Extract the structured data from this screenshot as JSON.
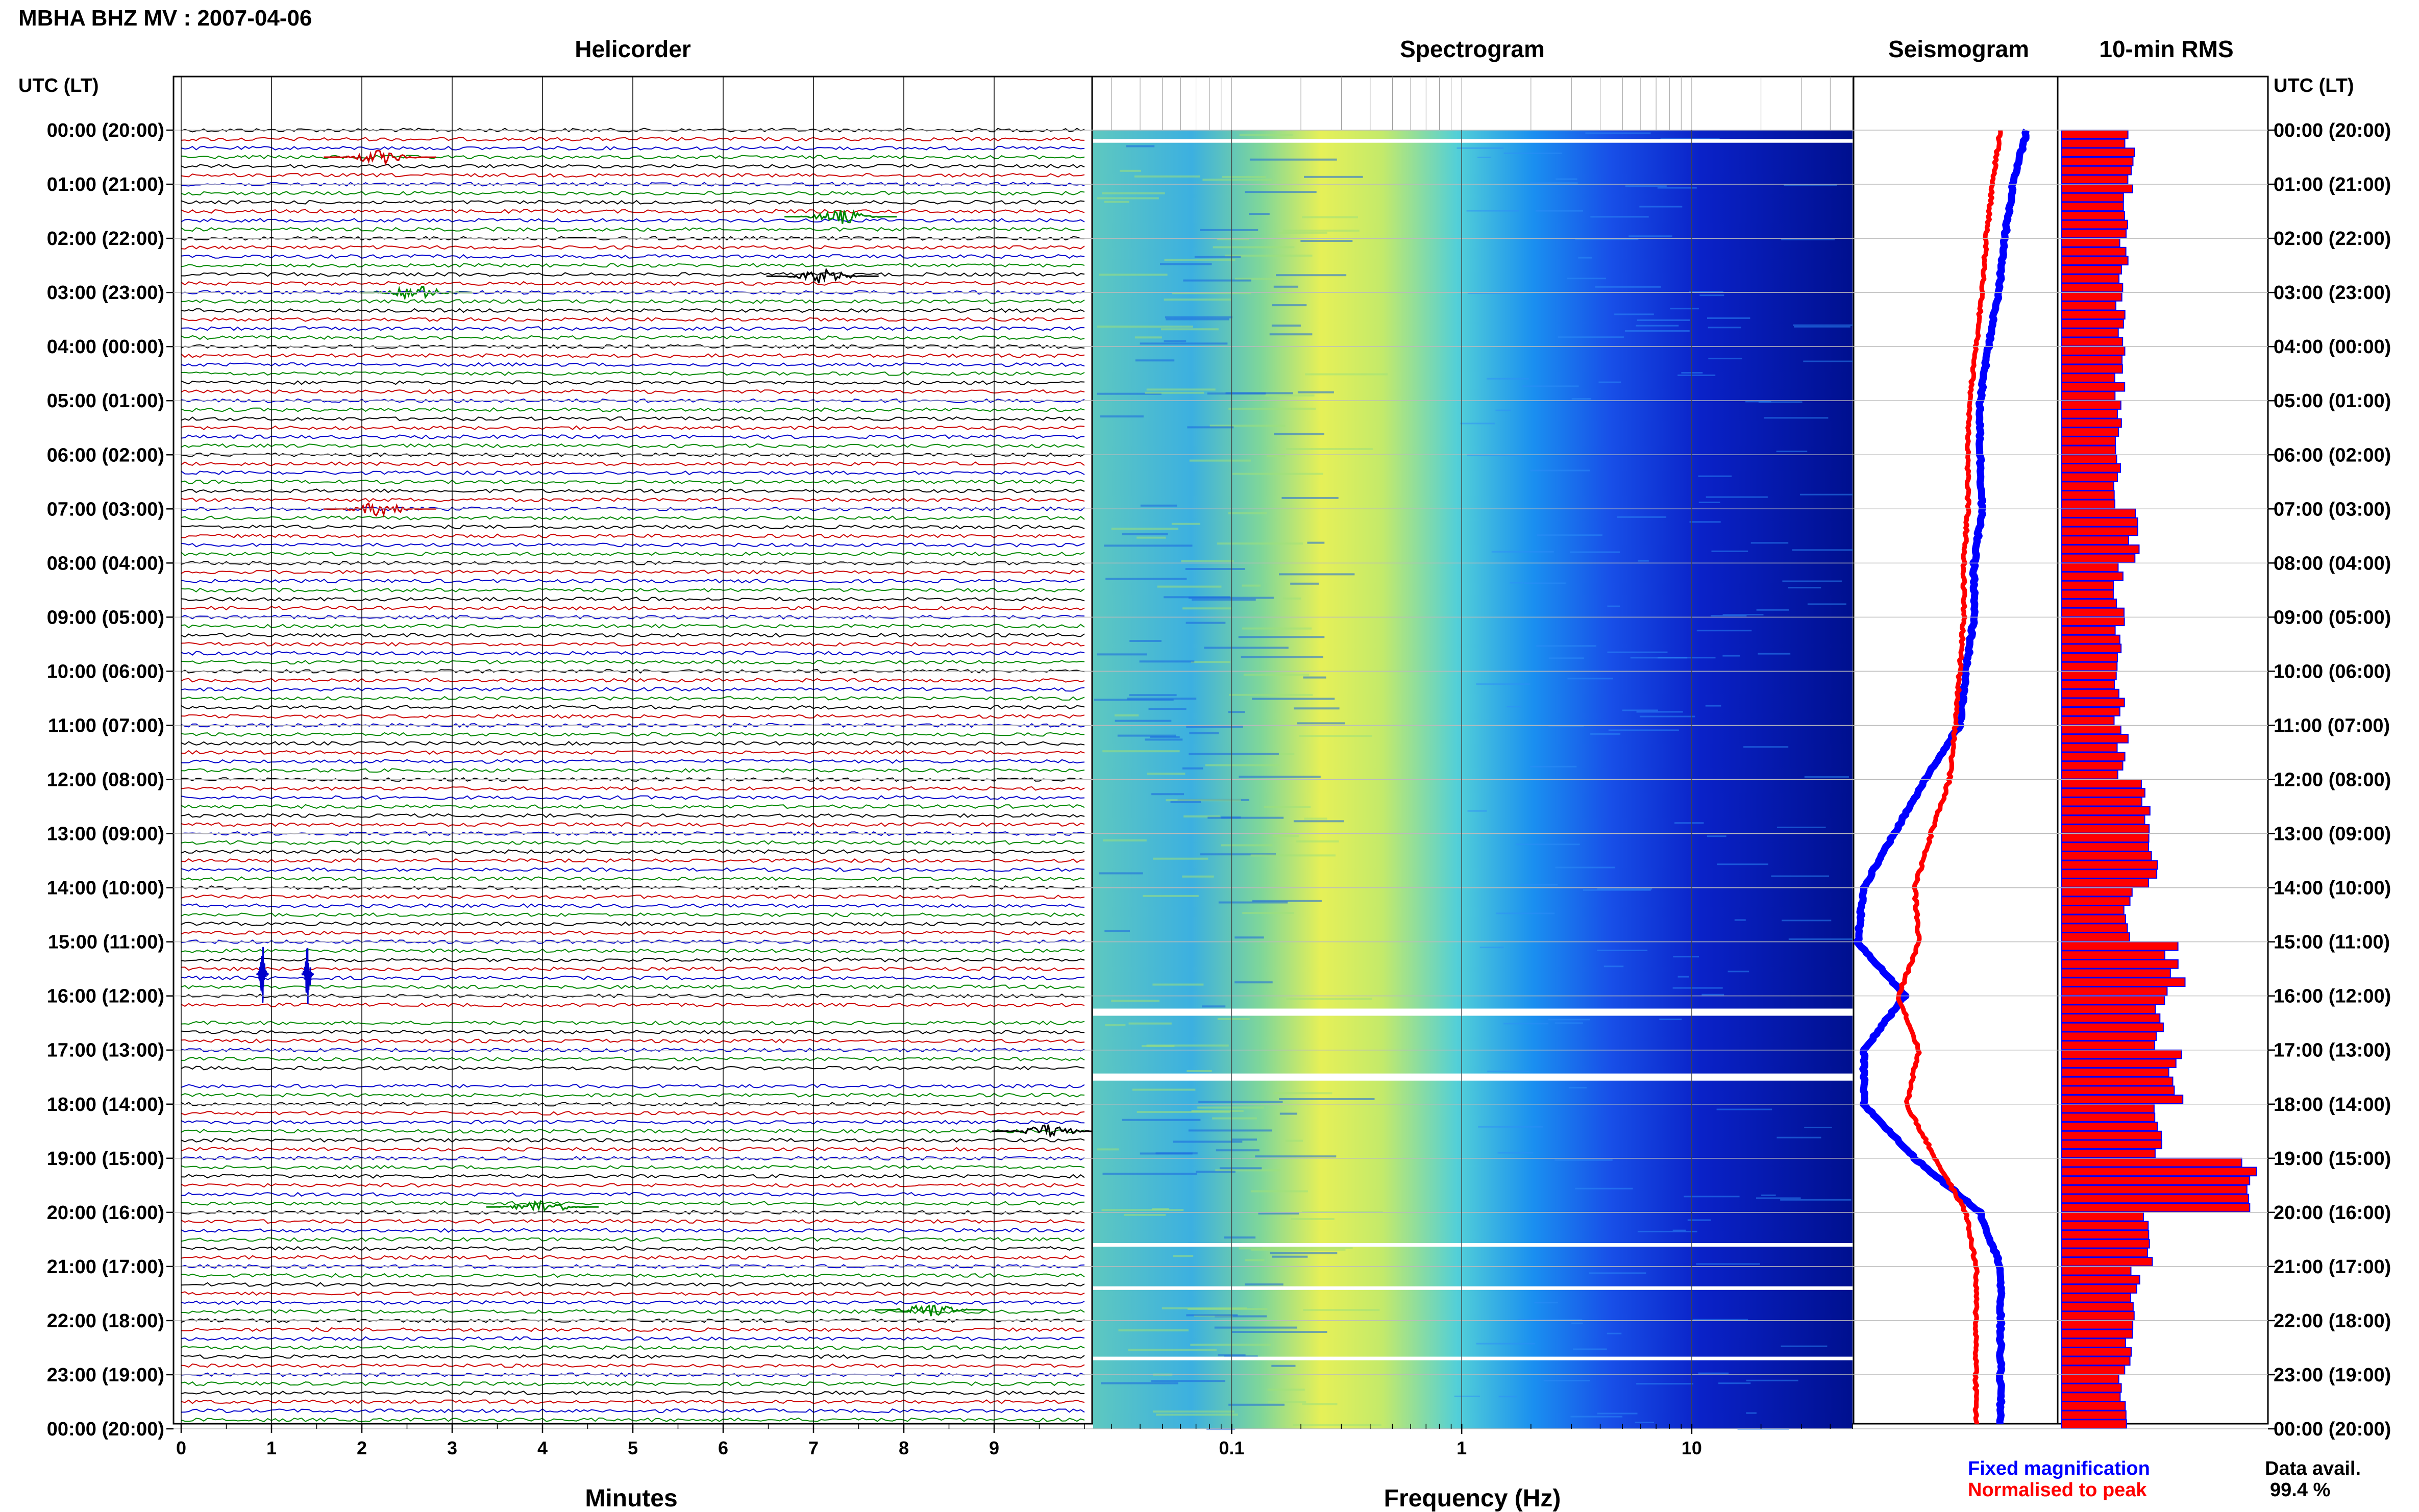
{
  "header": {
    "title": "MBHA BHZ MV : 2007-04-06"
  },
  "panels": {
    "helicorder": "Helicorder",
    "spectrogram": "Spectrogram",
    "seismogram": "Seismogram",
    "rms": "10-min RMS"
  },
  "axes": {
    "utc_label_left": "UTC (LT)",
    "utc_label_right": "UTC (LT)",
    "minutes_label": "Minutes",
    "frequency_label": "Frequency (Hz)",
    "minute_ticks": [
      "0",
      "1",
      "2",
      "3",
      "4",
      "5",
      "6",
      "7",
      "8",
      "9"
    ],
    "frequency_ticks": [
      "0.1",
      "1",
      "10"
    ]
  },
  "row_labels": [
    "00:00 (20:00)",
    "01:00 (21:00)",
    "02:00 (22:00)",
    "03:00 (23:00)",
    "04:00 (00:00)",
    "05:00 (01:00)",
    "06:00 (02:00)",
    "07:00 (03:00)",
    "08:00 (04:00)",
    "09:00 (05:00)",
    "10:00 (06:00)",
    "11:00 (07:00)",
    "12:00 (08:00)",
    "13:00 (09:00)",
    "14:00 (10:00)",
    "15:00 (11:00)",
    "16:00 (12:00)",
    "17:00 (13:00)",
    "18:00 (14:00)",
    "19:00 (15:00)",
    "20:00 (16:00)",
    "21:00 (17:00)",
    "22:00 (18:00)",
    "23:00 (19:00)",
    "00:00 (20:00)"
  ],
  "legend": {
    "fixed": "Fixed magnification",
    "normalised": "Normalised to peak",
    "fixed_color": "#0000ff",
    "normalised_color": "#ff0000"
  },
  "data_avail": {
    "label": "Data avail.",
    "value": "99.4 %"
  },
  "colors": {
    "trace_cycle": [
      "#000000",
      "#cc0000",
      "#0000cc",
      "#008800"
    ],
    "rms_fill": "#ff0000",
    "rms_edge": "#0000ff",
    "spec_low": "#00007f",
    "spec_high": "#ffff00"
  },
  "chart_data": [
    {
      "type": "line",
      "name": "helicorder",
      "title": "Helicorder",
      "xlabel": "Minutes",
      "xlim": [
        0,
        10
      ],
      "rows_per_hour": 6,
      "hours": 24,
      "events": [
        {
          "hour": 0.5,
          "minute": 2.2,
          "color": "#cc0000"
        },
        {
          "hour": 1.6,
          "minute": 7.3,
          "color": "#008800"
        },
        {
          "hour": 2.7,
          "minute": 7.1,
          "color": "#000000"
        },
        {
          "hour": 3.0,
          "minute": 2.6,
          "color": "#008800"
        },
        {
          "hour": 7.0,
          "minute": 2.2,
          "color": "#cc0000"
        },
        {
          "hour": 15.6,
          "minute": 0.9,
          "color": "#0000cc"
        },
        {
          "hour": 15.6,
          "minute": 1.4,
          "color": "#0000cc"
        },
        {
          "hour": 18.5,
          "minute": 9.6,
          "color": "#000000"
        },
        {
          "hour": 19.9,
          "minute": 4.0,
          "color": "#008800"
        },
        {
          "hour": 21.8,
          "minute": 8.3,
          "color": "#008800"
        }
      ],
      "gaps": [
        {
          "from_hour": 16.2,
          "to_hour": 16.4
        },
        {
          "from_hour": 17.4,
          "to_hour": 17.6
        }
      ]
    },
    {
      "type": "heatmap",
      "name": "spectrogram",
      "title": "Spectrogram",
      "xlabel": "Frequency (Hz)",
      "x_scale": "log",
      "xlim": [
        0.025,
        50
      ],
      "peak_frequency_hz": 0.3,
      "hours": 24,
      "gaps_hours": [
        0.2,
        16.3,
        17.5,
        20.6,
        21.4,
        22.7
      ]
    },
    {
      "type": "line",
      "name": "seismogram",
      "title": "Seismogram",
      "x": [
        0,
        1,
        2,
        3,
        4,
        5,
        6,
        7,
        8,
        9,
        10,
        11,
        12,
        13,
        14,
        15,
        16,
        17,
        18,
        19,
        20,
        21,
        22,
        23,
        24
      ],
      "series": [
        {
          "name": "Fixed magnification",
          "values": [
            0.85,
            0.78,
            0.74,
            0.71,
            0.66,
            0.62,
            0.62,
            0.63,
            0.59,
            0.59,
            0.55,
            0.52,
            0.35,
            0.2,
            0.05,
            0.02,
            0.25,
            0.05,
            0.05,
            0.3,
            0.62,
            0.72,
            0.72,
            0.72,
            0.72
          ]
        },
        {
          "name": "Normalised to peak",
          "values": [
            0.72,
            0.68,
            0.65,
            0.63,
            0.6,
            0.57,
            0.56,
            0.56,
            0.54,
            0.54,
            0.52,
            0.5,
            0.47,
            0.38,
            0.3,
            0.32,
            0.22,
            0.32,
            0.26,
            0.4,
            0.55,
            0.6,
            0.6,
            0.6,
            0.6
          ]
        }
      ]
    },
    {
      "type": "bar",
      "name": "rms",
      "title": "10-min RMS",
      "categories": [
        "00:00",
        "01:00",
        "02:00",
        "03:00",
        "04:00",
        "05:00",
        "06:00",
        "07:00",
        "08:00",
        "09:00",
        "10:00",
        "11:00",
        "12:00",
        "13:00",
        "14:00",
        "15:00",
        "16:00",
        "17:00",
        "18:00",
        "19:00",
        "20:00",
        "21:00",
        "22:00",
        "23:00"
      ],
      "values": [
        0.33,
        0.32,
        0.3,
        0.29,
        0.28,
        0.28,
        0.28,
        0.35,
        0.28,
        0.28,
        0.28,
        0.3,
        0.42,
        0.44,
        0.32,
        0.55,
        0.48,
        0.55,
        0.48,
        0.9,
        0.42,
        0.36,
        0.32,
        0.3
      ]
    }
  ]
}
